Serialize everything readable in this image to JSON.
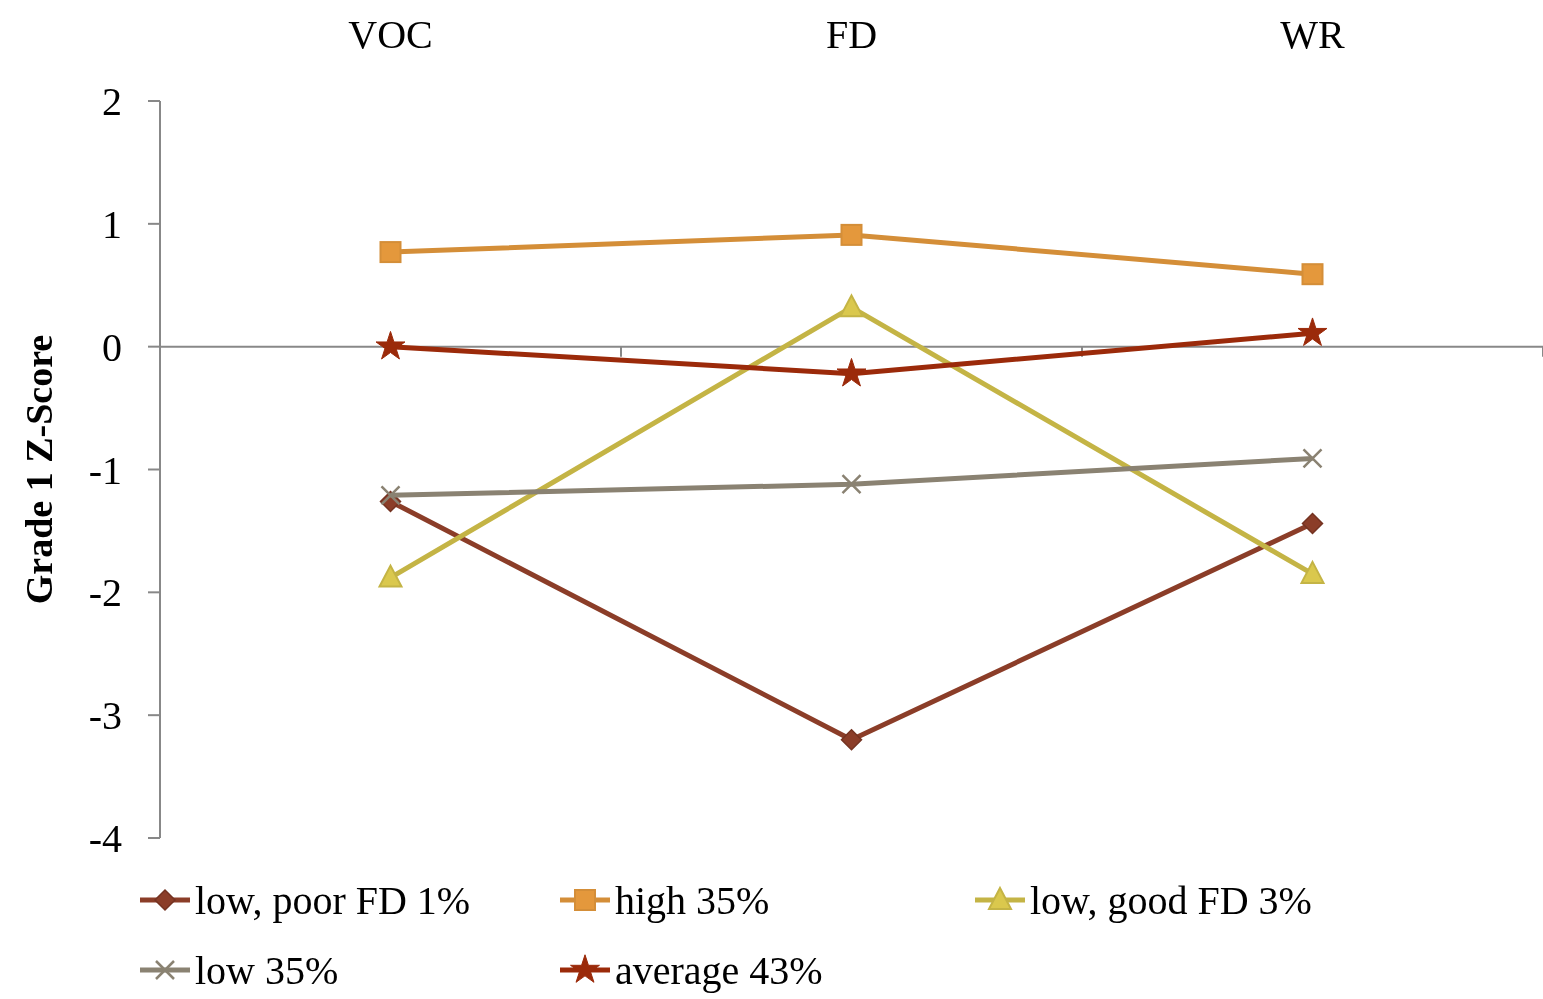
{
  "chart_data": {
    "type": "line",
    "ylabel": "Grade 1 Z-Score",
    "categories": [
      "VOC",
      "FD",
      "WR"
    ],
    "ylim": [
      -4,
      2
    ],
    "yticks": [
      -4,
      -3,
      -2,
      -1,
      0,
      1,
      2
    ],
    "legend": "bottom",
    "series": [
      {
        "name": "low, poor FD 1%",
        "color": "#8b3d28",
        "marker": "diamond",
        "values": [
          -1.26,
          -3.2,
          -1.44
        ]
      },
      {
        "name": "high 35%",
        "color": "#d48e38",
        "marker": "square",
        "values": [
          0.77,
          0.91,
          0.59
        ]
      },
      {
        "name": "low, good FD 3%",
        "color": "#c4b445",
        "marker": "triangle",
        "values": [
          -1.88,
          0.32,
          -1.85
        ]
      },
      {
        "name": "low 35%",
        "color": "#8a8272",
        "marker": "cross",
        "values": [
          -1.21,
          -1.12,
          -0.91
        ]
      },
      {
        "name": "average 43%",
        "color": "#9b2a0a",
        "marker": "star",
        "values": [
          0,
          -0.22,
          0.11
        ]
      }
    ]
  }
}
